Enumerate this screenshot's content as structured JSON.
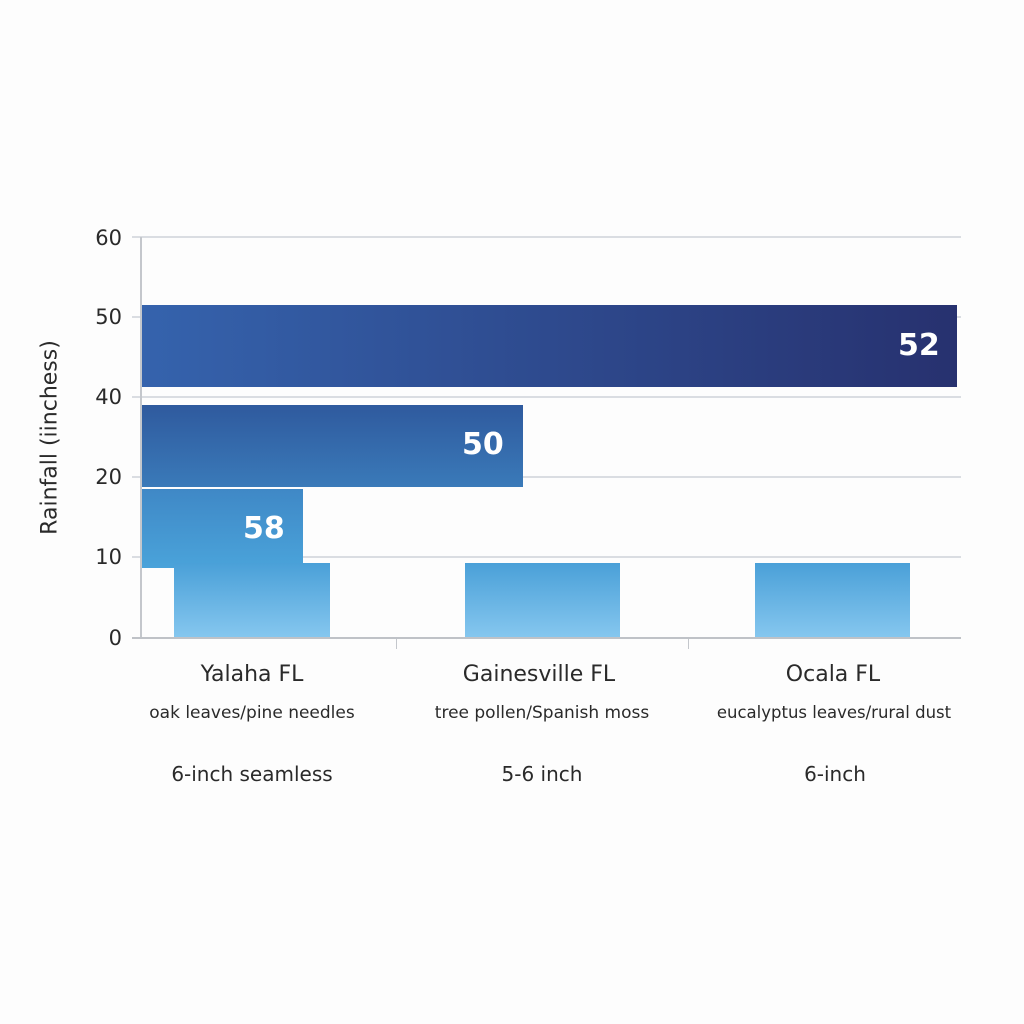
{
  "chart_data": {
    "type": "bar",
    "ylabel": "Rainfall (iinchess)",
    "yticks": [
      "60",
      "50",
      "40",
      "20",
      "10",
      "0"
    ],
    "categories": [
      "Yalaha FL",
      "Gainesville FL",
      "Ocala FL"
    ],
    "subtitles": [
      "oak leaves/pine needles",
      "tree pollen/Spanish moss",
      "eucalyptus leaves/rural dust"
    ],
    "specs": [
      "6-inch seamless",
      "5-6 inch",
      "6-inch"
    ],
    "overlay_bars": [
      {
        "label": "52",
        "color_start": "#3563ad",
        "color_end": "#27316f"
      },
      {
        "label": "50",
        "color_start": "#2f5a9e",
        "color_end": "#3a7ab9"
      },
      {
        "label": "58",
        "color_start": "#3f88c6",
        "color_end": "#4aa3da"
      }
    ],
    "values": [
      9,
      9,
      9
    ],
    "ylim": [
      0,
      60
    ],
    "grid": true
  }
}
